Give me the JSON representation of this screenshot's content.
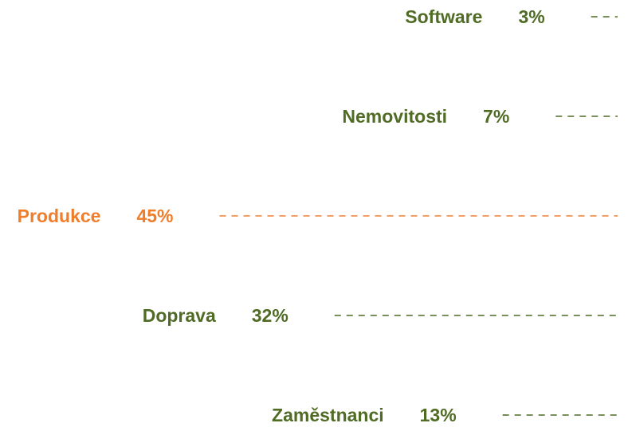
{
  "chart_data": {
    "type": "bar",
    "title": "",
    "xlabel": "",
    "ylabel": "",
    "categories": [
      "Software",
      "Nemovitosti",
      "Produkce",
      "Doprava",
      "Zaměstnanci"
    ],
    "values": [
      3,
      7,
      45,
      32,
      13
    ],
    "value_labels": [
      "3%",
      "7%",
      "45%",
      "32%",
      "13%"
    ],
    "unit": "%",
    "highlight_index": 2,
    "colors": {
      "default": "#4f6b24",
      "highlight": "#ef7d2a"
    },
    "style": "dashed leader lines pointing right, labels right-aligned before each line",
    "grid": false,
    "legend": "none"
  }
}
